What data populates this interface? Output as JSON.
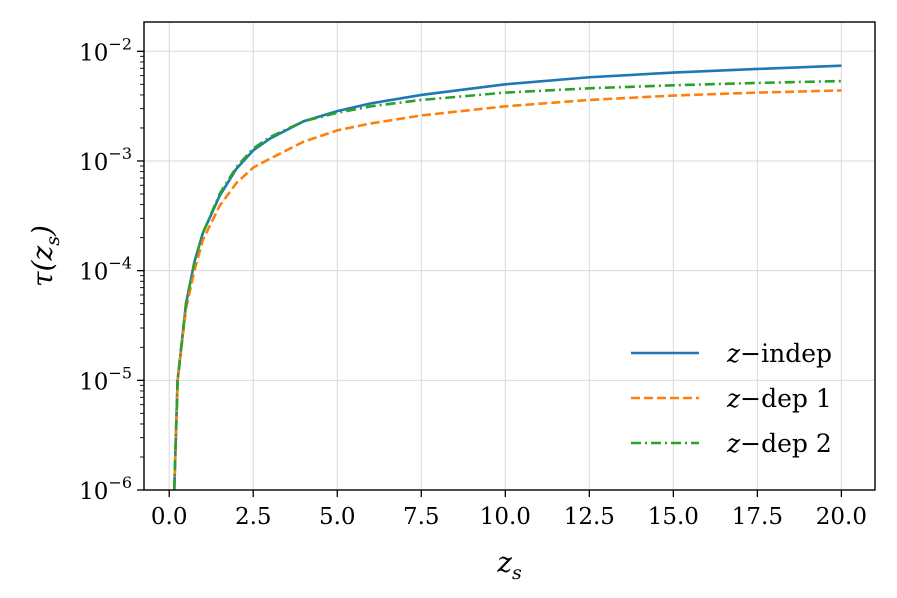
{
  "chart_data": {
    "type": "line",
    "title": "",
    "xlabel": "z_s",
    "ylabel": "τ(z_s)",
    "x_scale": "linear",
    "y_scale": "log",
    "xlim": [
      -0.75,
      21.0
    ],
    "ylim": [
      1e-06,
      0.0185
    ],
    "x_ticks": [
      0.0,
      2.5,
      5.0,
      7.5,
      10.0,
      12.5,
      15.0,
      17.5,
      20.0
    ],
    "x_tick_labels": [
      "0.0",
      "2.5",
      "5.0",
      "7.5",
      "10.0",
      "12.5",
      "15.0",
      "17.5",
      "20.0"
    ],
    "y_ticks": [
      {
        "value": 1e-06,
        "base": "10",
        "exp": "−6"
      },
      {
        "value": 1e-05,
        "base": "10",
        "exp": "−5"
      },
      {
        "value": 0.0001,
        "base": "10",
        "exp": "−4"
      },
      {
        "value": 0.001,
        "base": "10",
        "exp": "−3"
      },
      {
        "value": 0.01,
        "base": "10",
        "exp": "−2"
      }
    ],
    "grid": true,
    "legend_position": "lower-right",
    "series": [
      {
        "name": "z−indep",
        "color": "#1f77b4",
        "style": "solid",
        "x": [
          0.15,
          0.25,
          0.5,
          0.75,
          1.0,
          1.5,
          2.0,
          2.5,
          3.0,
          4.0,
          5.0,
          6.0,
          7.5,
          10.0,
          12.5,
          15.0,
          17.5,
          20.0
        ],
        "y": [
          1e-06,
          1e-05,
          5e-05,
          0.00012,
          0.00022,
          0.00048,
          0.00085,
          0.00125,
          0.0016,
          0.0023,
          0.00285,
          0.00335,
          0.004,
          0.005,
          0.0058,
          0.0064,
          0.0069,
          0.0074
        ]
      },
      {
        "name": "z−dep 1",
        "color": "#ff7f0e",
        "style": "dashed",
        "x": [
          0.15,
          0.25,
          0.5,
          0.75,
          1.0,
          1.5,
          2.0,
          2.5,
          3.0,
          4.0,
          5.0,
          6.0,
          7.5,
          10.0,
          12.5,
          15.0,
          17.5,
          20.0
        ],
        "y": [
          1e-06,
          1e-05,
          4.5e-05,
          0.0001,
          0.00019,
          0.00039,
          0.00063,
          0.00087,
          0.00105,
          0.0015,
          0.0019,
          0.0022,
          0.0026,
          0.00315,
          0.0036,
          0.00395,
          0.0042,
          0.0044
        ]
      },
      {
        "name": "z−dep 2",
        "color": "#2ca02c",
        "style": "dashdot",
        "x": [
          0.15,
          0.25,
          0.5,
          0.75,
          1.0,
          1.5,
          2.0,
          2.5,
          3.0,
          4.0,
          5.0,
          6.0,
          7.5,
          10.0,
          12.5,
          15.0,
          17.5,
          20.0
        ],
        "y": [
          1e-06,
          1e-05,
          5e-05,
          0.00012,
          0.00022,
          0.0005,
          0.00088,
          0.0013,
          0.00165,
          0.0023,
          0.00275,
          0.00315,
          0.0036,
          0.0042,
          0.0046,
          0.0049,
          0.00515,
          0.00535
        ]
      }
    ]
  }
}
